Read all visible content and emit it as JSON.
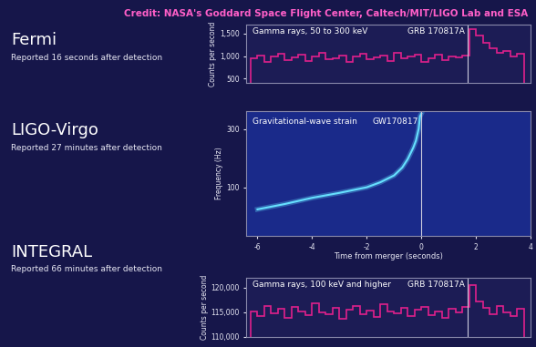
{
  "credit": "Credit: NASA's Goddard Space Flight Center, Caltech/MIT/LIGO Lab and ESA",
  "panels": [
    {
      "name": "Fermi",
      "note": "Reported 16 seconds after detection"
    },
    {
      "name": "LIGO-Virgo",
      "note": "Reported 27 minutes after detection"
    },
    {
      "name": "INTEGRAL",
      "note": "Reported 66 minutes after detection"
    }
  ],
  "chart_data": [
    {
      "type": "histogram",
      "title": "Gamma rays, 50 to 300 keV",
      "y_label": "Counts per second",
      "color": "#e0208c",
      "tick_labels": "y",
      "annotations": [
        {
          "text": "GRB 170817A",
          "x": 1.7
        }
      ],
      "bins": [
        -6.25,
        -6.0,
        -5.75,
        -5.5,
        -5.25,
        -5.0,
        -4.75,
        -4.5,
        -4.25,
        -4.0,
        -3.75,
        -3.5,
        -3.25,
        -3.0,
        -2.75,
        -2.5,
        -2.25,
        -2.0,
        -1.75,
        -1.5,
        -1.25,
        -1.0,
        -0.75,
        -0.5,
        -0.25,
        0.0,
        0.25,
        0.5,
        0.75,
        1.0,
        1.25,
        1.5,
        1.75,
        2.0,
        2.25,
        2.5,
        2.75,
        3.0,
        3.25,
        3.5,
        3.75
      ],
      "values": [
        950,
        1020,
        880,
        990,
        1060,
        910,
        970,
        1040,
        890,
        1000,
        1080,
        940,
        960,
        1010,
        870,
        990,
        1050,
        930,
        980,
        1020,
        900,
        1070,
        950,
        990,
        1030,
        880,
        960,
        1040,
        920,
        1000,
        970,
        1010,
        1600,
        1450,
        1300,
        1180,
        1080,
        1120,
        1000,
        1050
      ],
      "xlim": [
        -6.4,
        4.0
      ],
      "ylim": [
        400,
        1700
      ],
      "yticks": [
        500,
        {
          "value": 1000,
          "label": "1,000"
        },
        {
          "value": 1500,
          "label": "1,500"
        }
      ]
    },
    {
      "type": "line",
      "title": "Gravitational-wave strain",
      "x_label": "Time from merger (seconds)",
      "y_label": "Frequency (Hz)",
      "color": "#66e0ff",
      "log": "y",
      "annotations": [
        {
          "text": "GW170817",
          "x": 0
        }
      ],
      "x": [
        -6.0,
        -5.0,
        -4.0,
        -3.0,
        -2.0,
        -1.5,
        -1.0,
        -0.7,
        -0.5,
        -0.3,
        -0.2,
        -0.1,
        -0.05,
        0.0
      ],
      "values": [
        66,
        73,
        82,
        90,
        100,
        110,
        125,
        145,
        170,
        210,
        240,
        300,
        380,
        400
      ],
      "xlim": [
        -6.4,
        4.0
      ],
      "ylim": [
        40,
        420
      ],
      "xticks": [
        -6,
        -4,
        -2,
        0,
        2,
        4
      ],
      "yticks": [
        100,
        300
      ]
    },
    {
      "type": "histogram",
      "title": "Gamma rays, 100 keV and higher",
      "y_label": "Counts per second",
      "color": "#e0208c",
      "tick_labels": "y",
      "annotations": [
        {
          "text": "GRB 170817A",
          "x": 1.7
        }
      ],
      "bins": [
        -6.25,
        -6.0,
        -5.75,
        -5.5,
        -5.25,
        -5.0,
        -4.75,
        -4.5,
        -4.25,
        -4.0,
        -3.75,
        -3.5,
        -3.25,
        -3.0,
        -2.75,
        -2.5,
        -2.25,
        -2.0,
        -1.75,
        -1.5,
        -1.25,
        -1.0,
        -0.75,
        -0.5,
        -0.25,
        0.0,
        0.25,
        0.5,
        0.75,
        1.0,
        1.25,
        1.5,
        1.75,
        2.0,
        2.25,
        2.5,
        2.75,
        3.0,
        3.25,
        3.5,
        3.75
      ],
      "values": [
        115200,
        114100,
        116300,
        114800,
        115600,
        113900,
        116000,
        115100,
        114300,
        116700,
        115000,
        114500,
        115800,
        113700,
        115400,
        116200,
        114600,
        115300,
        114000,
        116500,
        115100,
        114700,
        115900,
        114200,
        115500,
        116100,
        114400,
        115200,
        113800,
        115700,
        114900,
        116000,
        120500,
        117200,
        115800,
        114600,
        116300,
        115000,
        114200,
        115600
      ],
      "xlim": [
        -6.4,
        4.0
      ],
      "ylim": [
        110000,
        122000
      ],
      "yticks": [
        {
          "value": 110000,
          "label": "110,000"
        },
        {
          "value": 115000,
          "label": "115,000"
        },
        {
          "value": 120000,
          "label": "120,000"
        }
      ]
    }
  ]
}
